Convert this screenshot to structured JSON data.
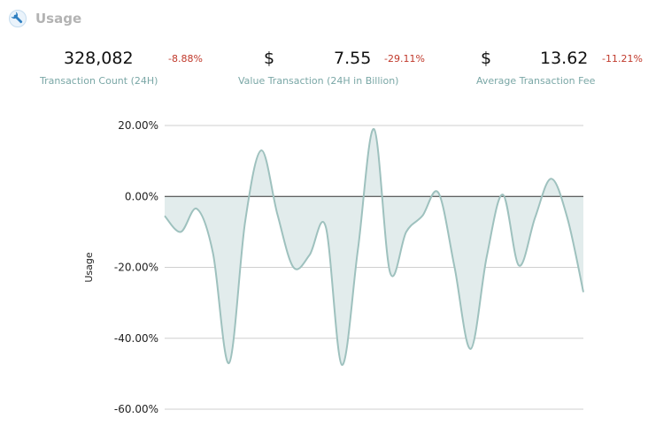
{
  "header": {
    "title": "Usage",
    "icon": "wrench-icon"
  },
  "stats": [
    {
      "value": "328,082",
      "change": "-8.88%",
      "label": "Transaction Count (24H)"
    },
    {
      "currency": "$",
      "value": "7.55",
      "change": "-29.11%",
      "label": "Value Transaction (24H in Billion)"
    },
    {
      "currency": "$",
      "value": "13.62",
      "change": "-11.21%",
      "label": "Average Transaction Fee"
    }
  ],
  "colors": {
    "line": "#9ec1be",
    "fill": "#e2ecec",
    "negative": "#c0392b",
    "label": "#7aa7a6",
    "grid": "#cfcfcf",
    "zero_line": "#333333"
  },
  "chart_data": {
    "type": "area",
    "ylabel": "Usage",
    "ylim": [
      -60,
      20
    ],
    "y_ticks": [
      20,
      0,
      -20,
      -40,
      -60
    ],
    "y_tick_labels": [
      "20.00%",
      "0.00%",
      "-20.00%",
      "-40.00%",
      "-60.00%"
    ],
    "grid": true,
    "series": [
      {
        "values": [
          -5.5,
          -10,
          -3.5,
          -16,
          -47,
          -7,
          13,
          -5,
          -20,
          -16.5,
          -8.5,
          -47.5,
          -15,
          19,
          -21.5,
          -10,
          -5.5,
          1,
          -20,
          -43,
          -17,
          0.5,
          -19.5,
          -6,
          5,
          -6,
          -27
        ]
      }
    ]
  }
}
